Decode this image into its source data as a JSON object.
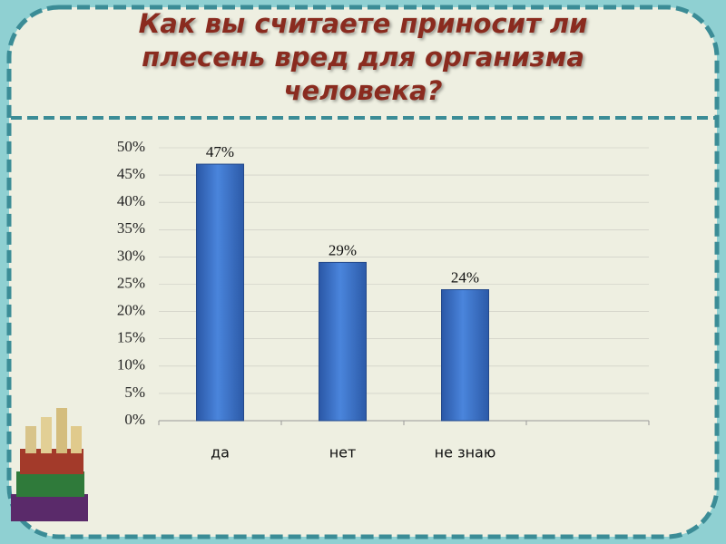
{
  "chart_data": {
    "type": "bar",
    "title": "Как вы считаете приносит   ли\nплесень  вред  для организма\nчеловека?",
    "categories": [
      "да",
      "нет",
      "не знаю",
      null
    ],
    "values": [
      47,
      29,
      24,
      null
    ],
    "value_labels": [
      "47%",
      "29%",
      "24%",
      null
    ],
    "color": "#3b6fc6",
    "ylim": [
      0,
      50
    ],
    "yticks": [
      {
        "value": 0,
        "label": "0%"
      },
      {
        "value": 5,
        "label": "5%"
      },
      {
        "value": 10,
        "label": "10%"
      },
      {
        "value": 15,
        "label": "15%"
      },
      {
        "value": 20,
        "label": "20%"
      },
      {
        "value": 25,
        "label": "25%"
      },
      {
        "value": 30,
        "label": "30%"
      },
      {
        "value": 35,
        "label": "35%"
      },
      {
        "value": 40,
        "label": "40%"
      },
      {
        "value": 45,
        "label": "45%"
      },
      {
        "value": 50,
        "label": "50%"
      }
    ],
    "grid": true
  }
}
